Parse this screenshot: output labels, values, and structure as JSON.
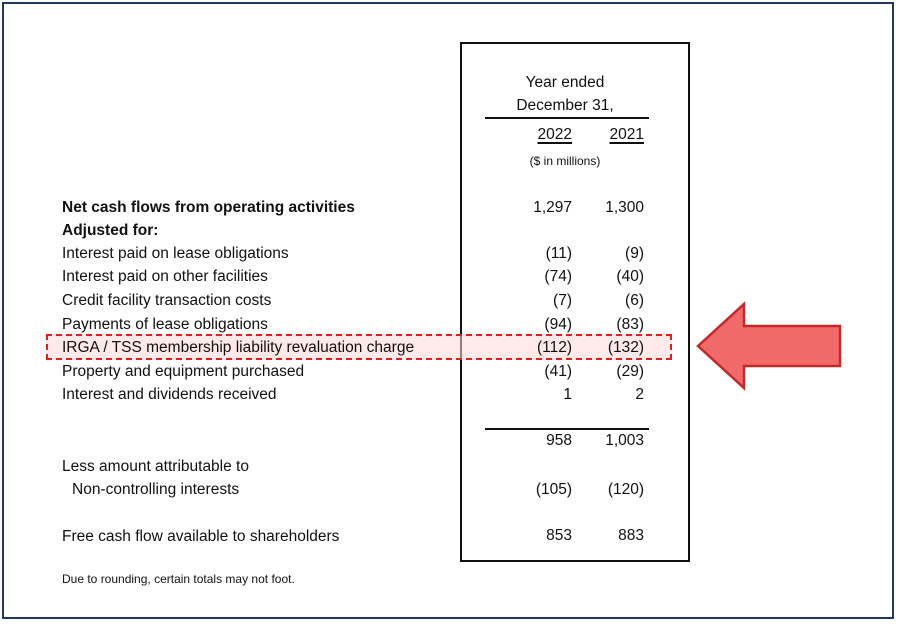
{
  "header": {
    "period_line1": "Year ended",
    "period_line2": "December 31,",
    "year1": "2022",
    "year2": "2021",
    "units": "($ in millions)"
  },
  "rows": [
    {
      "label": "Net cash flows from operating activities",
      "v2022": "1,297",
      "v2021": "1,300",
      "bold": true
    },
    {
      "label": "Adjusted for:",
      "v2022": "",
      "v2021": "",
      "bold": true
    },
    {
      "label": "Interest paid on lease obligations",
      "v2022": "(11)",
      "v2021": "(9)"
    },
    {
      "label": "Interest paid on other facilities",
      "v2022": "(74)",
      "v2021": "(40)"
    },
    {
      "label": "Credit facility transaction costs",
      "v2022": "(7)",
      "v2021": "(6)"
    },
    {
      "label": "Payments of lease obligations",
      "v2022": "(94)",
      "v2021": "(83)"
    },
    {
      "label": "IRGA / TSS membership liability revaluation charge",
      "v2022": "(112)",
      "v2021": "(132)",
      "highlighted": true
    },
    {
      "label": "Property and equipment purchased",
      "v2022": "(41)",
      "v2021": "(29)"
    },
    {
      "label": "Interest and dividends received",
      "v2022": "1",
      "v2021": "2"
    }
  ],
  "subtotal": {
    "v2022": "958",
    "v2021": "1,003"
  },
  "nci": {
    "label_line1": "Less amount attributable to",
    "label_line2": "Non-controlling interests",
    "v2022": "(105)",
    "v2021": "(120)"
  },
  "fcf": {
    "label": "Free cash flow available to shareholders",
    "v2022": "853",
    "v2021": "883"
  },
  "footnote": "Due to rounding, certain totals may not foot.",
  "colors": {
    "frame": "#1f3864",
    "highlight_border": "#e02020",
    "arrow": "#f06a6a",
    "arrow_stroke": "#c62828"
  }
}
